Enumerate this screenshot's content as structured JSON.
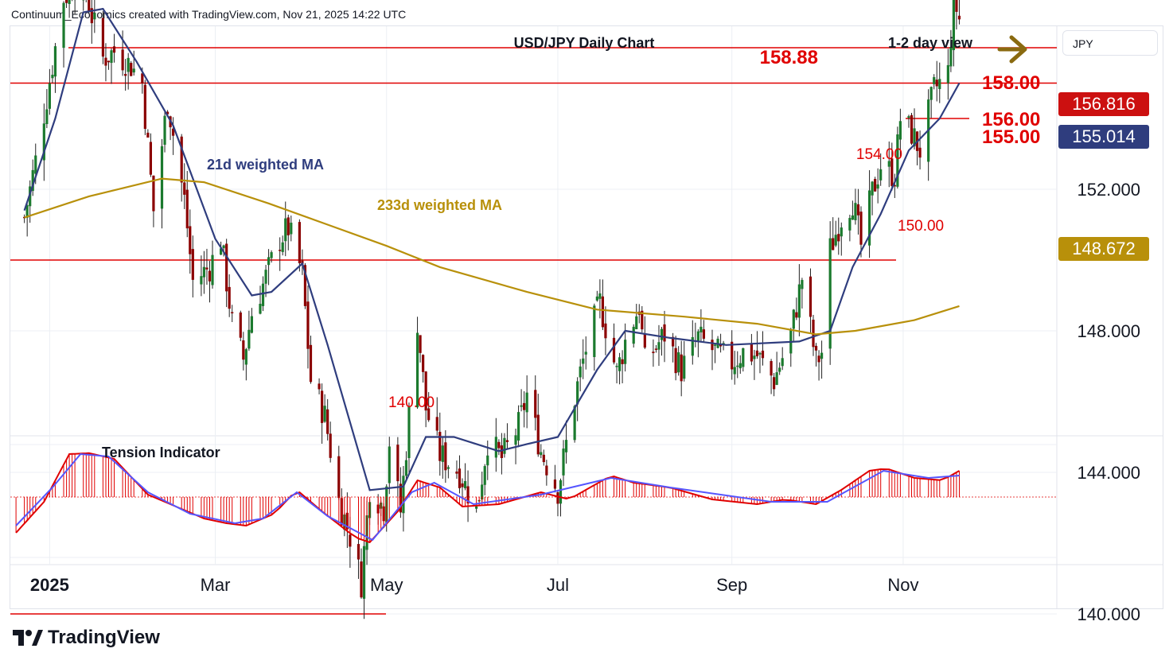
{
  "header": {
    "attribution": "Continuum_Economics created with TradingView.com, Nov 21, 2025 14:22 UTC"
  },
  "symbol_box": "JPY",
  "price_tags": [
    {
      "label": "156.816",
      "color": "#cc1010"
    },
    {
      "label": "155.014",
      "color": "#2f3d7e"
    },
    {
      "label": "148.672",
      "color": "#b8900a"
    }
  ],
  "logo_text": "TradingView",
  "colors": {
    "red": "#e00000",
    "navy": "#2f3d7e",
    "gold": "#b8900a",
    "osc_line": "#5555ff",
    "grid": "#eceff4",
    "text": "#131722"
  },
  "chart_data": {
    "type": "candlestick",
    "title": "USD/JPY Daily Chart",
    "view_label": "1-2 day view",
    "arrow_icon": "right-arrow-icon",
    "ylim": [
      137.9,
      161.5
    ],
    "y_axis_ticks": [
      "152.000",
      "148.000",
      "144.000",
      "140.000"
    ],
    "x_axis_ticks": [
      "2025",
      "Mar",
      "May",
      "Jul",
      "Sep",
      "Nov"
    ],
    "levels": [
      {
        "label": "158.88",
        "value": 158.88
      },
      {
        "label": "158.00",
        "value": 158.0
      },
      {
        "label": "156.00",
        "value": 156.0
      },
      {
        "label": "155.00",
        "value": 155.0
      },
      {
        "label": "154.00",
        "value": 154.0
      },
      {
        "label": "150.00",
        "value": 150.0
      },
      {
        "label": "140.00",
        "value": 140.0
      }
    ],
    "annotations": [
      "21d weighted MA",
      "233d weighted MA"
    ],
    "close_path": [
      [
        "2024-12-23",
        151.2
      ],
      [
        "2024-12-27",
        152.8
      ],
      [
        "2024-12-31",
        154.6
      ],
      [
        "2025-01-06",
        157.4
      ],
      [
        "2025-01-10",
        157.8
      ],
      [
        "2025-01-14",
        157.6
      ],
      [
        "2025-01-16",
        156.9
      ],
      [
        "2025-01-20",
        155.7
      ],
      [
        "2025-01-24",
        155.9
      ],
      [
        "2025-01-30",
        155.5
      ],
      [
        "2025-02-03",
        155.0
      ],
      [
        "2025-02-07",
        151.4
      ],
      [
        "2025-02-12",
        154.5
      ],
      [
        "2025-02-18",
        151.7
      ],
      [
        "2025-02-21",
        149.4
      ],
      [
        "2025-02-27",
        149.8
      ],
      [
        "2025-03-03",
        150.6
      ],
      [
        "2025-03-07",
        148.2
      ],
      [
        "2025-03-11",
        147.2
      ],
      [
        "2025-03-14",
        148.5
      ],
      [
        "2025-03-18",
        149.3
      ],
      [
        "2025-03-24",
        150.6
      ],
      [
        "2025-03-27",
        150.9
      ],
      [
        "2025-04-01",
        149.6
      ],
      [
        "2025-04-04",
        146.6
      ],
      [
        "2025-04-09",
        145.6
      ],
      [
        "2025-04-14",
        143.2
      ],
      [
        "2025-04-18",
        142.2
      ],
      [
        "2025-04-22",
        140.9
      ],
      [
        "2025-04-25",
        143.6
      ],
      [
        "2025-04-30",
        143.0
      ],
      [
        "2025-05-02",
        144.9
      ],
      [
        "2025-05-06",
        142.9
      ],
      [
        "2025-05-12",
        148.3
      ],
      [
        "2025-05-15",
        145.8
      ],
      [
        "2025-05-20",
        144.5
      ],
      [
        "2025-05-27",
        144.0
      ],
      [
        "2025-06-02",
        142.9
      ],
      [
        "2025-06-06",
        144.9
      ],
      [
        "2025-06-11",
        144.4
      ],
      [
        "2025-06-17",
        145.3
      ],
      [
        "2025-06-20",
        146.2
      ],
      [
        "2025-06-25",
        144.6
      ],
      [
        "2025-07-01",
        143.5
      ],
      [
        "2025-07-07",
        146.1
      ],
      [
        "2025-07-11",
        147.5
      ],
      [
        "2025-07-16",
        148.8
      ],
      [
        "2025-07-22",
        146.8
      ],
      [
        "2025-07-25",
        147.7
      ],
      [
        "2025-07-30",
        148.7
      ],
      [
        "2025-08-01",
        147.1
      ],
      [
        "2025-08-08",
        147.9
      ],
      [
        "2025-08-14",
        146.9
      ],
      [
        "2025-08-20",
        147.8
      ],
      [
        "2025-08-26",
        147.4
      ],
      [
        "2025-09-01",
        147.1
      ],
      [
        "2025-09-05",
        147.4
      ],
      [
        "2025-09-10",
        147.3
      ],
      [
        "2025-09-16",
        146.6
      ],
      [
        "2025-09-22",
        147.9
      ],
      [
        "2025-09-26",
        149.5
      ],
      [
        "2025-10-01",
        147.1
      ],
      [
        "2025-10-03",
        147.4
      ],
      [
        "2025-10-06",
        150.3
      ],
      [
        "2025-10-10",
        151.2
      ],
      [
        "2025-10-14",
        151.7
      ],
      [
        "2025-10-17",
        150.4
      ],
      [
        "2025-10-21",
        151.9
      ],
      [
        "2025-10-24",
        152.7
      ],
      [
        "2025-10-29",
        152.4
      ],
      [
        "2025-10-31",
        154.0
      ],
      [
        "2025-11-04",
        153.6
      ],
      [
        "2025-11-07",
        153.1
      ],
      [
        "2025-11-12",
        154.8
      ],
      [
        "2025-11-17",
        155.3
      ],
      [
        "2025-11-19",
        157.4
      ],
      [
        "2025-11-21",
        156.8
      ]
    ],
    "series": [
      {
        "name": "21d weighted MA",
        "points": [
          [
            "2024-12-23",
            151.4
          ],
          [
            "2025-01-03",
            154.0
          ],
          [
            "2025-01-13",
            157.0
          ],
          [
            "2025-01-20",
            157.1
          ],
          [
            "2025-02-01",
            155.6
          ],
          [
            "2025-02-14",
            153.8
          ],
          [
            "2025-03-01",
            150.6
          ],
          [
            "2025-03-14",
            149.0
          ],
          [
            "2025-03-21",
            149.1
          ],
          [
            "2025-04-01",
            149.9
          ],
          [
            "2025-04-10",
            147.6
          ],
          [
            "2025-04-25",
            143.5
          ],
          [
            "2025-05-07",
            143.6
          ],
          [
            "2025-05-15",
            145.0
          ],
          [
            "2025-05-25",
            145.0
          ],
          [
            "2025-06-10",
            144.6
          ],
          [
            "2025-06-20",
            144.8
          ],
          [
            "2025-07-01",
            145.0
          ],
          [
            "2025-07-15",
            146.9
          ],
          [
            "2025-07-25",
            148.0
          ],
          [
            "2025-08-10",
            147.8
          ],
          [
            "2025-08-30",
            147.6
          ],
          [
            "2025-09-25",
            147.7
          ],
          [
            "2025-10-06",
            148.0
          ],
          [
            "2025-10-14",
            149.8
          ],
          [
            "2025-10-24",
            151.3
          ],
          [
            "2025-11-03",
            153.1
          ],
          [
            "2025-11-14",
            154.0
          ],
          [
            "2025-11-21",
            155.0
          ]
        ]
      },
      {
        "name": "233d weighted MA",
        "points": [
          [
            "2024-12-23",
            151.2
          ],
          [
            "2025-01-15",
            151.8
          ],
          [
            "2025-02-10",
            152.3
          ],
          [
            "2025-02-25",
            152.2
          ],
          [
            "2025-03-20",
            151.6
          ],
          [
            "2025-04-10",
            151.0
          ],
          [
            "2025-05-01",
            150.4
          ],
          [
            "2025-05-20",
            149.8
          ],
          [
            "2025-06-20",
            149.1
          ],
          [
            "2025-07-15",
            148.6
          ],
          [
            "2025-08-15",
            148.4
          ],
          [
            "2025-09-10",
            148.2
          ],
          [
            "2025-10-01",
            147.9
          ],
          [
            "2025-10-15",
            148.0
          ],
          [
            "2025-11-05",
            148.3
          ],
          [
            "2025-11-21",
            148.7
          ]
        ]
      }
    ],
    "indicator": {
      "name": "Tension Indicator",
      "series": [
        {
          "name": "histogram",
          "points": [
            [
              "2024-12-20",
              -0.75
            ],
            [
              "2024-12-30",
              -0.1
            ],
            [
              "2025-01-08",
              0.9
            ],
            [
              "2025-01-15",
              0.92
            ],
            [
              "2025-01-24",
              0.8
            ],
            [
              "2025-02-05",
              0.05
            ],
            [
              "2025-02-15",
              -0.2
            ],
            [
              "2025-02-25",
              -0.45
            ],
            [
              "2025-03-05",
              -0.55
            ],
            [
              "2025-03-12",
              -0.6
            ],
            [
              "2025-03-22",
              -0.35
            ],
            [
              "2025-03-30",
              0.15
            ],
            [
              "2025-04-08",
              -0.3
            ],
            [
              "2025-04-20",
              -0.85
            ],
            [
              "2025-04-25",
              -0.95
            ],
            [
              "2025-05-05",
              -0.3
            ],
            [
              "2025-05-12",
              0.35
            ],
            [
              "2025-05-20",
              0.2
            ],
            [
              "2025-05-28",
              -0.2
            ],
            [
              "2025-06-10",
              -0.15
            ],
            [
              "2025-06-25",
              0.1
            ],
            [
              "2025-07-05",
              -0.05
            ],
            [
              "2025-07-20",
              0.45
            ],
            [
              "2025-07-28",
              0.3
            ],
            [
              "2025-08-10",
              0.2
            ],
            [
              "2025-08-25",
              -0.05
            ],
            [
              "2025-09-10",
              -0.15
            ],
            [
              "2025-09-20",
              -0.05
            ],
            [
              "2025-10-01",
              -0.15
            ],
            [
              "2025-10-10",
              0.15
            ],
            [
              "2025-10-20",
              0.55
            ],
            [
              "2025-10-26",
              0.6
            ],
            [
              "2025-11-05",
              0.4
            ],
            [
              "2025-11-15",
              0.35
            ],
            [
              "2025-11-21",
              0.55
            ]
          ]
        },
        {
          "name": "signal",
          "points": [
            [
              "2024-12-20",
              -0.6
            ],
            [
              "2025-01-02",
              0.2
            ],
            [
              "2025-01-12",
              0.9
            ],
            [
              "2025-01-22",
              0.85
            ],
            [
              "2025-02-05",
              0.1
            ],
            [
              "2025-02-20",
              -0.35
            ],
            [
              "2025-03-08",
              -0.55
            ],
            [
              "2025-03-18",
              -0.45
            ],
            [
              "2025-03-30",
              0.1
            ],
            [
              "2025-04-10",
              -0.4
            ],
            [
              "2025-04-26",
              -0.9
            ],
            [
              "2025-05-10",
              0.1
            ],
            [
              "2025-05-18",
              0.3
            ],
            [
              "2025-06-01",
              -0.15
            ],
            [
              "2025-06-25",
              0.05
            ],
            [
              "2025-07-20",
              0.4
            ],
            [
              "2025-08-10",
              0.2
            ],
            [
              "2025-09-15",
              -0.1
            ],
            [
              "2025-10-05",
              -0.1
            ],
            [
              "2025-10-25",
              0.55
            ],
            [
              "2025-11-10",
              0.4
            ],
            [
              "2025-11-21",
              0.45
            ]
          ]
        }
      ]
    }
  }
}
